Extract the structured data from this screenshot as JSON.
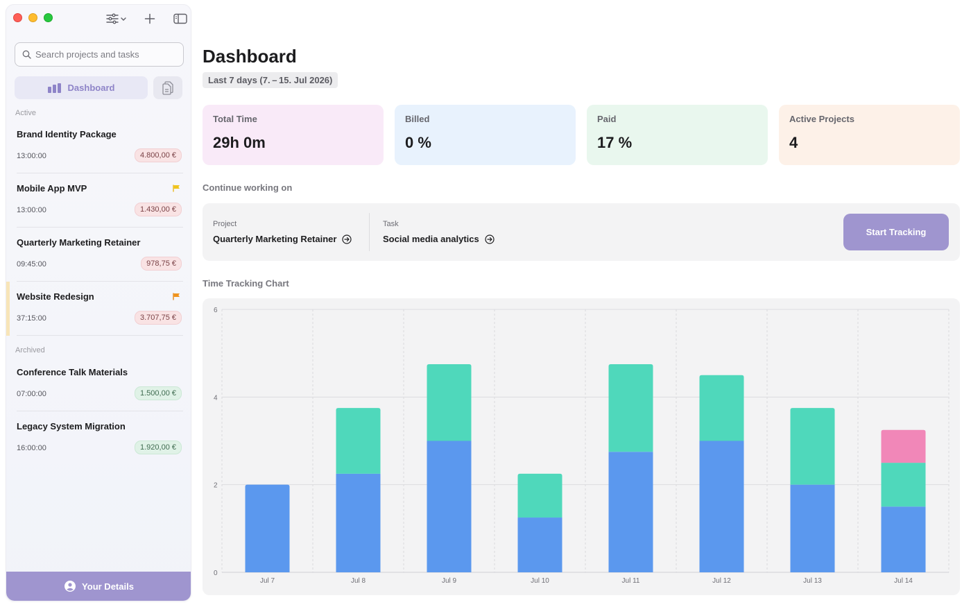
{
  "window": {
    "toolbar_icons": [
      "filter-sliders-icon",
      "plus-icon",
      "sidebar-toggle-icon"
    ]
  },
  "sidebar": {
    "search_placeholder": "Search projects and tasks",
    "nav": {
      "dashboard_label": "Dashboard",
      "dashboard_icon": "bar-chart-icon",
      "files_icon": "documents-icon"
    },
    "active_label": "Active",
    "archived_label": "Archived",
    "active_projects": [
      {
        "name": "Brand Identity Package",
        "time": "13:00:00",
        "amount": "4.800,00 €",
        "flag": ""
      },
      {
        "name": "Mobile App MVP",
        "time": "13:00:00",
        "amount": "1.430,00 €",
        "flag": "yellow"
      },
      {
        "name": "Quarterly Marketing Retainer",
        "time": "09:45:00",
        "amount": "978,75 €",
        "flag": ""
      },
      {
        "name": "Website Redesign",
        "time": "37:15:00",
        "amount": "3.707,75 €",
        "flag": "orange"
      }
    ],
    "archived_projects": [
      {
        "name": "Conference Talk Materials",
        "time": "07:00:00",
        "amount": "1.500,00 €"
      },
      {
        "name": "Legacy System Migration",
        "time": "16:00:00",
        "amount": "1.920,00 €"
      }
    ],
    "details_label": "Your Details"
  },
  "main": {
    "title": "Dashboard",
    "date_range": "Last 7 days (7. – 15. Jul 2026)",
    "stats": [
      {
        "label": "Total Time",
        "value": "29h 0m",
        "color": "#f9eaf8"
      },
      {
        "label": "Billed",
        "value": "0 %",
        "color": "#e8f2fd"
      },
      {
        "label": "Paid",
        "value": "17 %",
        "color": "#e9f7ee"
      },
      {
        "label": "Active Projects",
        "value": "4",
        "color": "#fdf1e8"
      }
    ],
    "continue_heading": "Continue working on",
    "continue": {
      "project_label": "Project",
      "project_value": "Quarterly Marketing Retainer",
      "task_label": "Task",
      "task_value": "Social media analytics",
      "start_button": "Start Tracking"
    },
    "chart_heading": "Time Tracking Chart"
  },
  "colors": {
    "accent": "#9f95cf",
    "series_blue": "#5b98ee",
    "series_teal": "#4fd8bb",
    "series_pink": "#f187b8"
  },
  "chart_data": {
    "type": "bar",
    "stacked": true,
    "categories": [
      "Jul 7",
      "Jul 8",
      "Jul 9",
      "Jul 10",
      "Jul 11",
      "Jul 12",
      "Jul 13",
      "Jul 14"
    ],
    "series": [
      {
        "color": "#5b98ee",
        "values": [
          2,
          2.25,
          3,
          1.25,
          2.75,
          3,
          2,
          1.5
        ]
      },
      {
        "color": "#4fd8bb",
        "values": [
          0,
          1.5,
          1.75,
          1,
          2,
          1.5,
          1.75,
          1
        ]
      },
      {
        "color": "#f187b8",
        "values": [
          0,
          0,
          0,
          0,
          0,
          0,
          0,
          0.75
        ]
      }
    ],
    "ylim": [
      0,
      6
    ],
    "yticks": [
      0,
      2,
      4,
      6
    ],
    "grid": true,
    "title": "",
    "xlabel": "",
    "ylabel": ""
  }
}
